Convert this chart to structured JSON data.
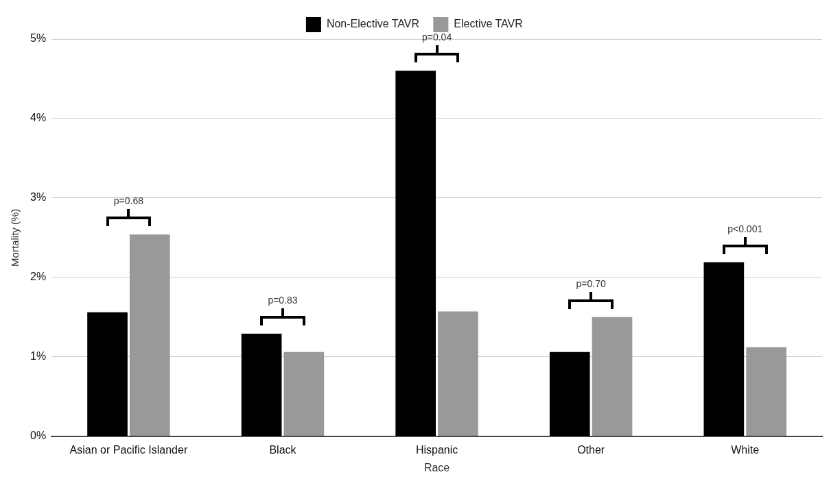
{
  "chart_data": {
    "type": "bar",
    "xlabel": "Race",
    "ylabel": "Mortality (%)",
    "categories": [
      "Asian or Pacific Islander",
      "Black",
      "Hispanic",
      "Other",
      "White"
    ],
    "series": [
      {
        "name": "Non-Elective TAVR",
        "color": "#000000",
        "values": [
          1.56,
          1.29,
          4.6,
          1.06,
          2.19
        ]
      },
      {
        "name": "Elective TAVR",
        "color": "#999999",
        "values": [
          2.54,
          1.06,
          1.57,
          1.5,
          1.12
        ]
      }
    ],
    "ylim": [
      0,
      5
    ],
    "yticks": [
      {
        "value": 0,
        "label": "0%"
      },
      {
        "value": 1,
        "label": "1%"
      },
      {
        "value": 2,
        "label": "2%"
      },
      {
        "value": 3,
        "label": "3%"
      },
      {
        "value": 4,
        "label": "4%"
      },
      {
        "value": 5,
        "label": "5%"
      }
    ],
    "grid": "y",
    "legend": "top",
    "annotations": [
      "p=0.68",
      "p=0.83",
      "p=0.04",
      "p=0.70",
      "p<0.001"
    ]
  }
}
